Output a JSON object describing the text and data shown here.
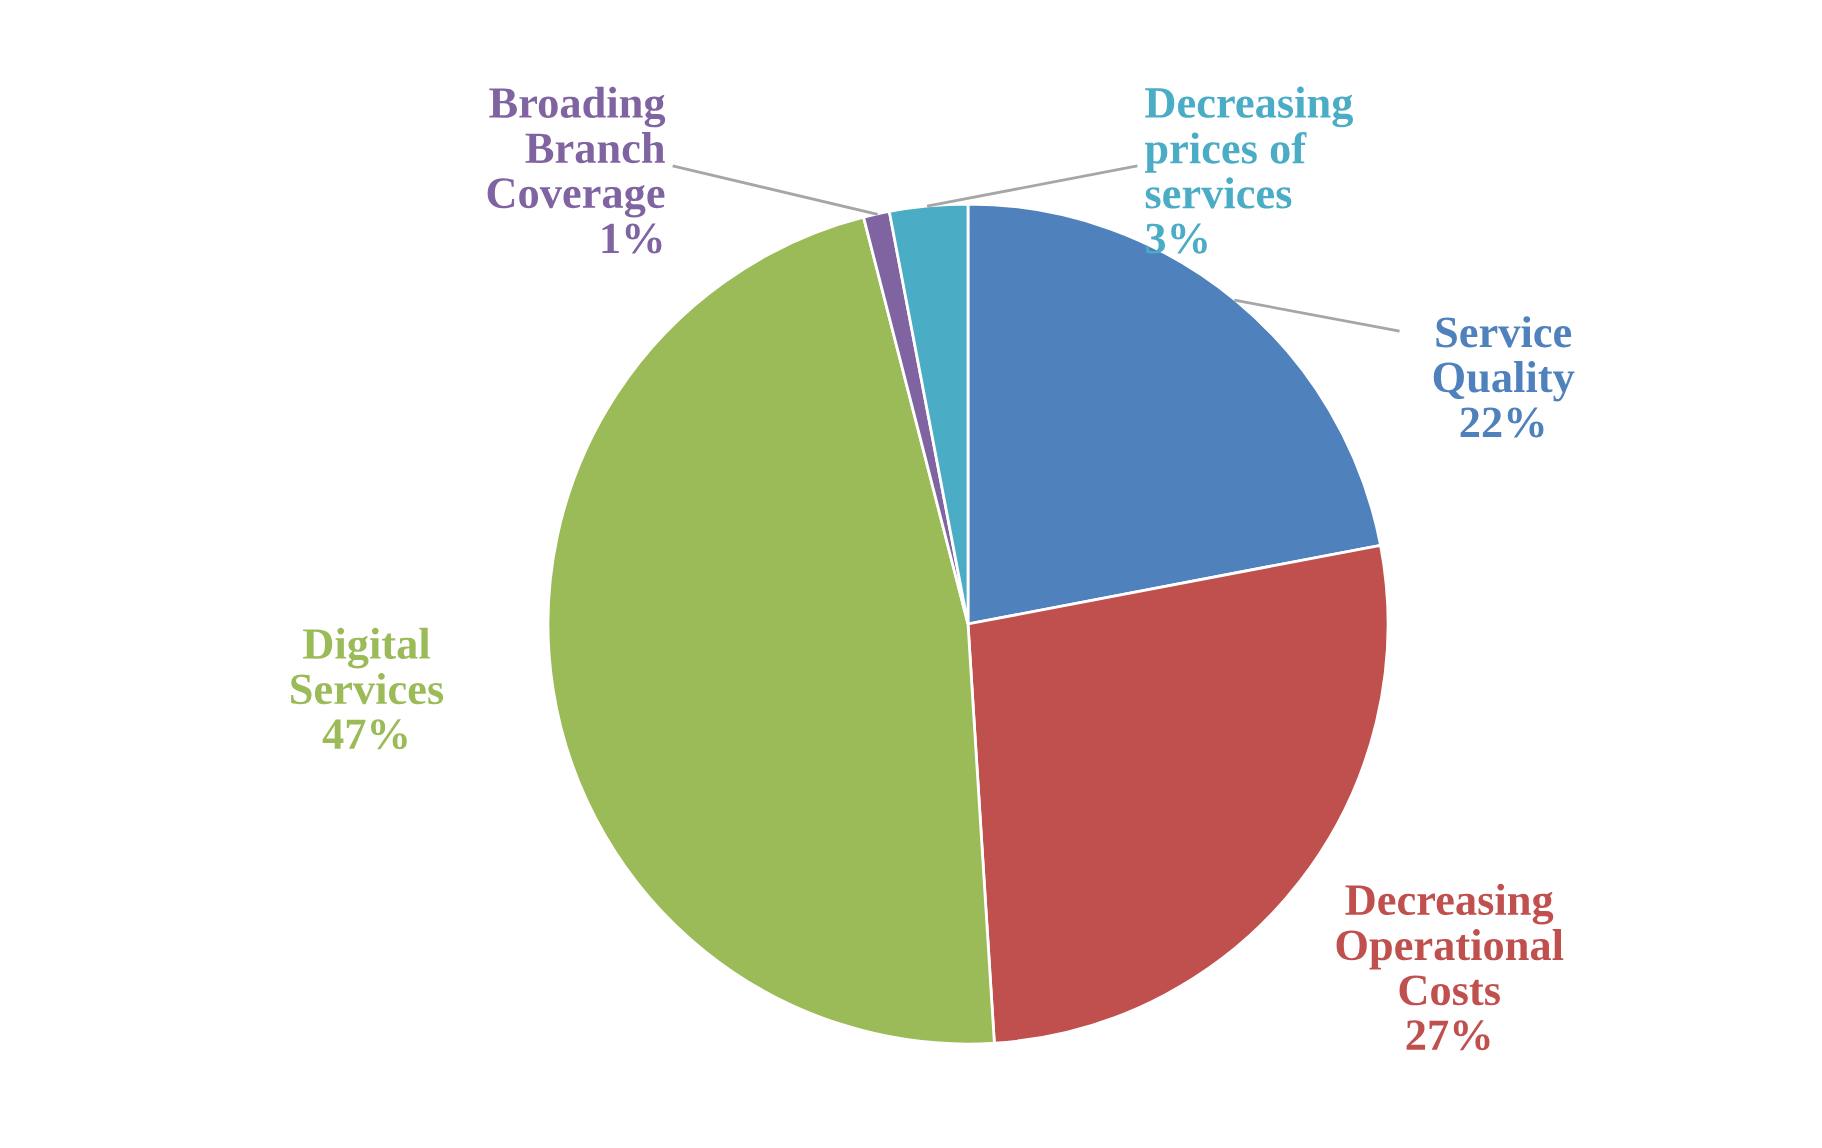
{
  "chart_data": {
    "type": "pie",
    "categories": [
      "Service Quality",
      "Decreasing Operational Costs",
      "Digital Services",
      "Broading Branch Coverage",
      "Decreasing prices of services"
    ],
    "values": [
      22,
      27,
      47,
      1,
      3
    ],
    "value_labels": [
      "22%",
      "27%",
      "47%",
      "1%",
      "3%"
    ],
    "colors": [
      "#4f81bd",
      "#c0504d",
      "#9bbb59",
      "#8064a2",
      "#4bacc6"
    ],
    "legend": false
  }
}
